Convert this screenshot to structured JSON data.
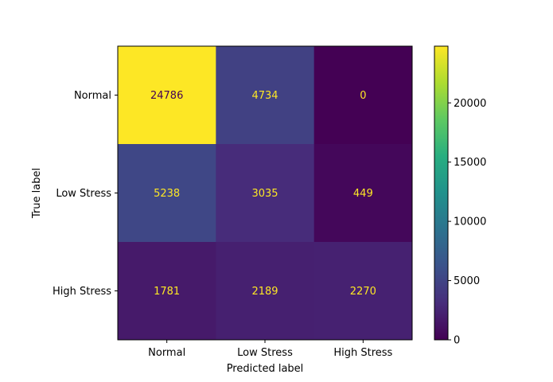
{
  "chart_data": {
    "type": "heatmap",
    "title": "",
    "xlabel": "Predicted label",
    "ylabel": "True label",
    "x_categories": [
      "Normal",
      "Low Stress",
      "High Stress"
    ],
    "y_categories": [
      "Normal",
      "Low Stress",
      "High Stress"
    ],
    "values": [
      [
        24786,
        4734,
        0
      ],
      [
        5238,
        3035,
        449
      ],
      [
        1781,
        2189,
        2270
      ]
    ],
    "colormap": "viridis",
    "vmin": 0,
    "vmax": 24786,
    "colorbar_ticks": [
      0,
      5000,
      10000,
      15000,
      20000
    ],
    "text_color_on_dark": "#fde725",
    "text_color_on_light": "#440154"
  }
}
